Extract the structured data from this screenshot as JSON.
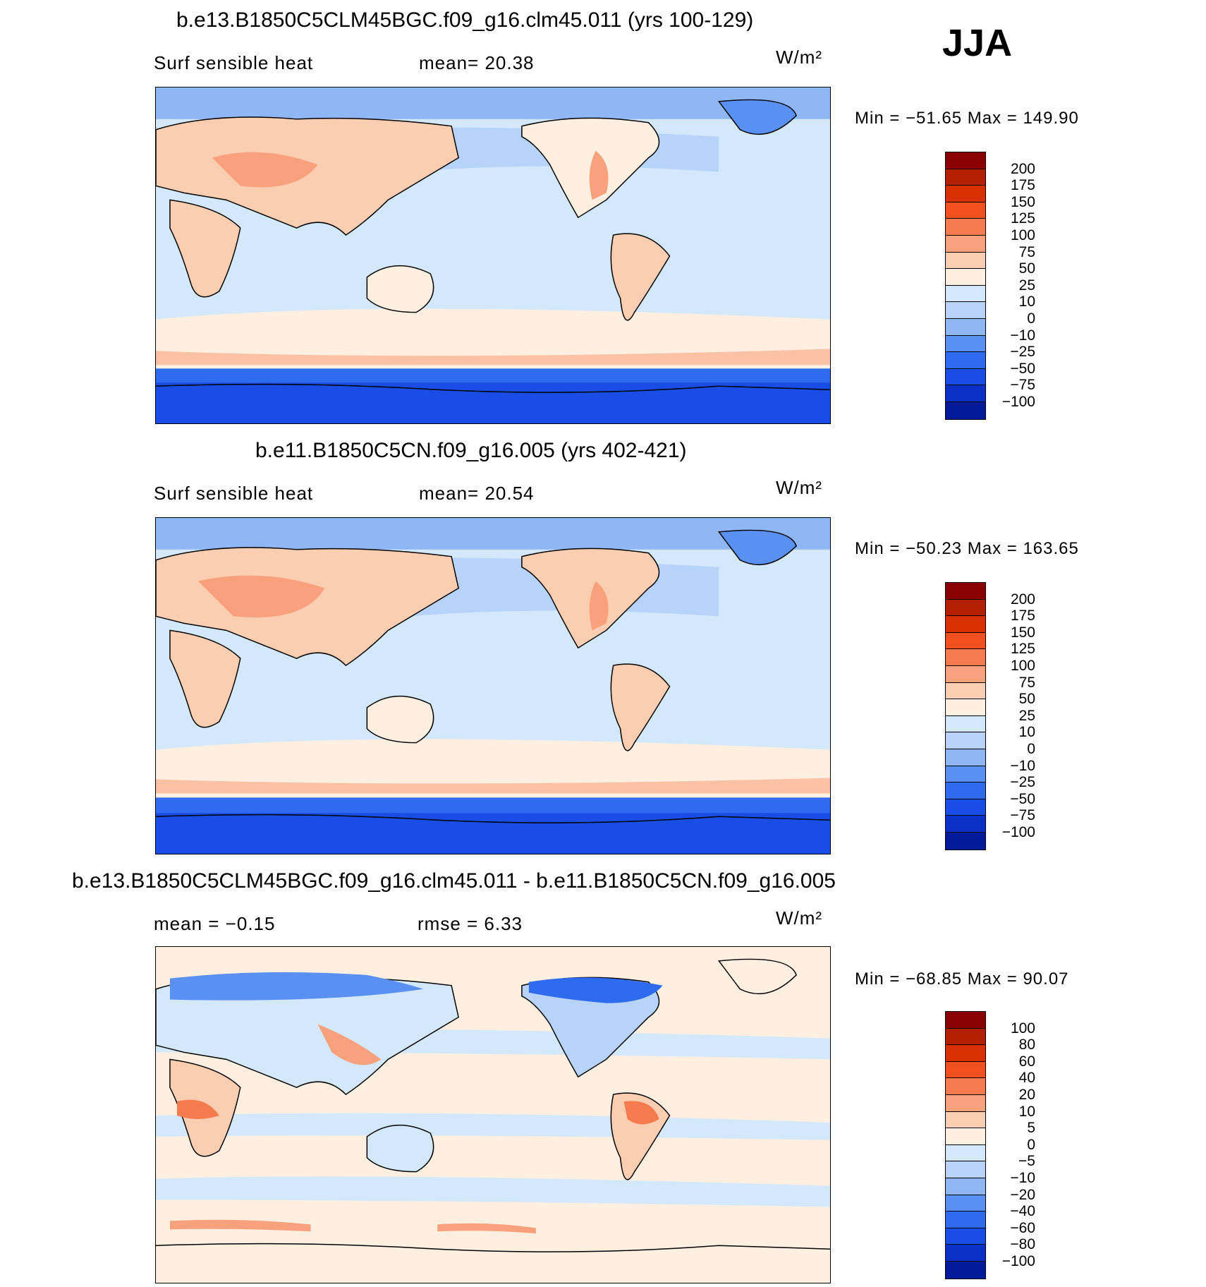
{
  "season": "JJA",
  "units": "W/m²",
  "panels": [
    {
      "id": "case",
      "title": "b.e13.B1850C5CLM45BGC.f09_g16.clm45.011 (yrs 100-129)",
      "left_label": "Surf  sensible  heat",
      "center_label": "mean=   20.38",
      "units": "W/m²",
      "minmax": "Min  =  −51.65  Max  =  149.90",
      "colorbar": {
        "colors": [
          "#8b0000",
          "#b22000",
          "#d93000",
          "#f35020",
          "#f67c4f",
          "#f9a17c",
          "#fbcdb1",
          "#feefe0",
          "#d4e8fb",
          "#b7d3fa",
          "#8fb7f6",
          "#5a90f2",
          "#2f6bef",
          "#1a4de6",
          "#0a30c8",
          "#001a9a"
        ],
        "labels": [
          "200",
          "175",
          "150",
          "125",
          "100",
          "75",
          "50",
          "25",
          "10",
          "0",
          "−10",
          "−25",
          "−50",
          "−75",
          "−100"
        ]
      }
    },
    {
      "id": "control",
      "title": "b.e11.B1850C5CN.f09_g16.005 (yrs 402-421)",
      "left_label": "Surf  sensible  heat",
      "center_label": "mean=   20.54",
      "units": "W/m²",
      "minmax": "Min  =  −50.23  Max  =  163.65",
      "colorbar": {
        "colors": [
          "#8b0000",
          "#b22000",
          "#d93000",
          "#f35020",
          "#f67c4f",
          "#f9a17c",
          "#fbcdb1",
          "#feefe0",
          "#d4e8fb",
          "#b7d3fa",
          "#8fb7f6",
          "#5a90f2",
          "#2f6bef",
          "#1a4de6",
          "#0a30c8",
          "#001a9a"
        ],
        "labels": [
          "200",
          "175",
          "150",
          "125",
          "100",
          "75",
          "50",
          "25",
          "10",
          "0",
          "−10",
          "−25",
          "−50",
          "−75",
          "−100"
        ]
      }
    },
    {
      "id": "difference",
      "title": "b.e13.B1850C5CLM45BGC.f09_g16.clm45.011 - b.e11.B1850C5CN.f09_g16.005",
      "left_label": "mean  =    −0.15",
      "center_label": "rmse  =     6.33",
      "units": "W/m²",
      "minmax": "Min  =  −68.85  Max  =   90.07",
      "colorbar": {
        "colors": [
          "#8b0000",
          "#b22000",
          "#d93000",
          "#f35020",
          "#f67c4f",
          "#f9a17c",
          "#fbcdb1",
          "#feefe0",
          "#d4e8fb",
          "#b7d3fa",
          "#8fb7f6",
          "#5a90f2",
          "#2f6bef",
          "#1a4de6",
          "#0a30c8",
          "#001a9a"
        ],
        "labels": [
          "100",
          "80",
          "60",
          "40",
          "20",
          "10",
          "5",
          "0",
          "−5",
          "−10",
          "−20",
          "−40",
          "−60",
          "−80",
          "−100"
        ]
      }
    }
  ]
}
